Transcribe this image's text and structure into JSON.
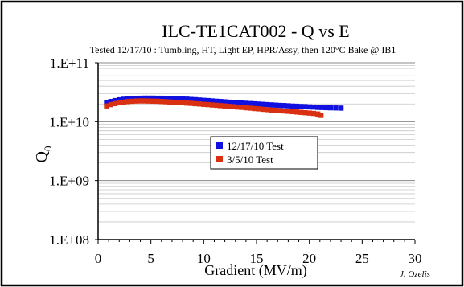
{
  "chart_data": {
    "type": "scatter",
    "title": "ILC-TE1CAT002 - Q vs E",
    "subtitle": "Tested 12/17/10 :  Tumbling, HT, Light EP, HPR/Assy, then 120°C Bake @ IB1",
    "xlabel": "Gradient (MV/m)",
    "ylabel_main": "Q",
    "ylabel_sub": "0",
    "credit": "J. Ozelis",
    "x_scale": "linear",
    "y_scale": "log",
    "xlim": [
      0,
      30
    ],
    "ylim": [
      100000000,
      100000000000
    ],
    "x_ticks": [
      {
        "value": 0,
        "label": "0"
      },
      {
        "value": 5,
        "label": "5"
      },
      {
        "value": 10,
        "label": "10"
      },
      {
        "value": 15,
        "label": "15"
      },
      {
        "value": 20,
        "label": "20"
      },
      {
        "value": 25,
        "label": "25"
      },
      {
        "value": 30,
        "label": "30"
      }
    ],
    "y_ticks": [
      {
        "value": 100000000,
        "label": "1.E+08"
      },
      {
        "value": 1000000000,
        "label": "1.E+09"
      },
      {
        "value": 10000000000,
        "label": "1.E+10"
      },
      {
        "value": 100000000000,
        "label": "1.E+11"
      }
    ],
    "grid": true,
    "legend_position": "center-right",
    "series": [
      {
        "name": "12/17/10 Test",
        "color": "#1010e0",
        "marker": "square",
        "x": [
          0.8,
          1.2,
          1.6,
          2.0,
          2.4,
          2.8,
          3.2,
          3.6,
          4.0,
          4.4,
          4.8,
          5.2,
          5.6,
          6.0,
          6.4,
          6.8,
          7.2,
          7.6,
          8.0,
          8.4,
          8.8,
          9.2,
          9.6,
          10.0,
          10.4,
          10.8,
          11.2,
          11.6,
          12.0,
          12.4,
          12.8,
          13.2,
          13.6,
          14.0,
          14.4,
          14.8,
          15.2,
          15.6,
          16.0,
          16.4,
          16.8,
          17.2,
          17.6,
          18.0,
          18.4,
          18.8,
          19.2,
          19.6,
          20.0,
          20.4,
          20.8,
          21.2,
          21.6,
          22.0,
          22.5,
          23.0
        ],
        "y": [
          21000000000,
          22000000000,
          22800000000,
          23500000000,
          24000000000,
          24400000000,
          24700000000,
          24900000000,
          25000000000,
          25100000000,
          25100000000,
          25100000000,
          25000000000,
          25000000000,
          24900000000,
          24800000000,
          24700000000,
          24500000000,
          24300000000,
          24100000000,
          23800000000,
          23600000000,
          23300000000,
          23000000000,
          22800000000,
          22500000000,
          22200000000,
          22000000000,
          21700000000,
          21400000000,
          21200000000,
          21000000000,
          20700000000,
          20500000000,
          20300000000,
          20100000000,
          19900000000,
          19700000000,
          19500000000,
          19300000000,
          19100000000,
          18900000000,
          18800000000,
          18600000000,
          18400000000,
          18300000000,
          18100000000,
          18000000000,
          17800000000,
          17700000000,
          17500000000,
          17400000000,
          17300000000,
          17200000000,
          17100000000,
          17000000000
        ]
      },
      {
        "name": "3/5/10 Test",
        "color": "#d83010",
        "marker": "square",
        "x": [
          0.8,
          1.2,
          1.6,
          2.0,
          2.4,
          2.8,
          3.2,
          3.6,
          4.0,
          4.4,
          4.8,
          5.2,
          5.6,
          6.0,
          6.4,
          6.8,
          7.2,
          7.6,
          8.0,
          8.4,
          8.8,
          9.2,
          9.6,
          10.0,
          10.4,
          10.8,
          11.2,
          11.6,
          12.0,
          12.4,
          12.8,
          13.2,
          13.6,
          14.0,
          14.4,
          14.8,
          15.2,
          15.6,
          16.0,
          16.4,
          16.8,
          17.2,
          17.6,
          18.0,
          18.4,
          18.8,
          19.2,
          19.6,
          20.0,
          20.4,
          20.8,
          21.1
        ],
        "y": [
          18500000000,
          19500000000,
          20300000000,
          21000000000,
          21500000000,
          21900000000,
          22200000000,
          22400000000,
          22500000000,
          22500000000,
          22400000000,
          22300000000,
          22200000000,
          22000000000,
          21800000000,
          21600000000,
          21400000000,
          21200000000,
          21000000000,
          20700000000,
          20500000000,
          20200000000,
          20000000000,
          19700000000,
          19500000000,
          19200000000,
          19000000000,
          18700000000,
          18500000000,
          18200000000,
          18000000000,
          17700000000,
          17500000000,
          17200000000,
          17000000000,
          16700000000,
          16500000000,
          16200000000,
          16000000000,
          15800000000,
          15600000000,
          15400000000,
          15200000000,
          15000000000,
          14800000000,
          14600000000,
          14400000000,
          14200000000,
          14000000000,
          13800000000,
          13500000000,
          12800000000
        ]
      }
    ]
  }
}
